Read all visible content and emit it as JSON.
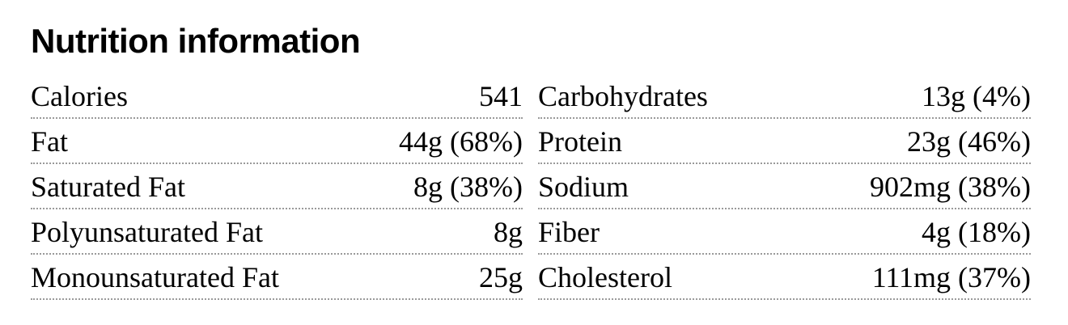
{
  "title": "Nutrition information",
  "left_column": [
    {
      "label": "Calories",
      "value": "541"
    },
    {
      "label": "Fat",
      "value": "44g (68%)"
    },
    {
      "label": "Saturated Fat",
      "value": "8g (38%)"
    },
    {
      "label": "Polyunsaturated Fat",
      "value": "8g"
    },
    {
      "label": "Monounsaturated Fat",
      "value": "25g"
    }
  ],
  "right_column": [
    {
      "label": "Carbohydrates",
      "value": "13g (4%)"
    },
    {
      "label": "Protein",
      "value": "23g (46%)"
    },
    {
      "label": "Sodium",
      "value": "902mg (38%)"
    },
    {
      "label": "Fiber",
      "value": "4g (18%)"
    },
    {
      "label": "Cholesterol",
      "value": "111mg (37%)"
    }
  ]
}
